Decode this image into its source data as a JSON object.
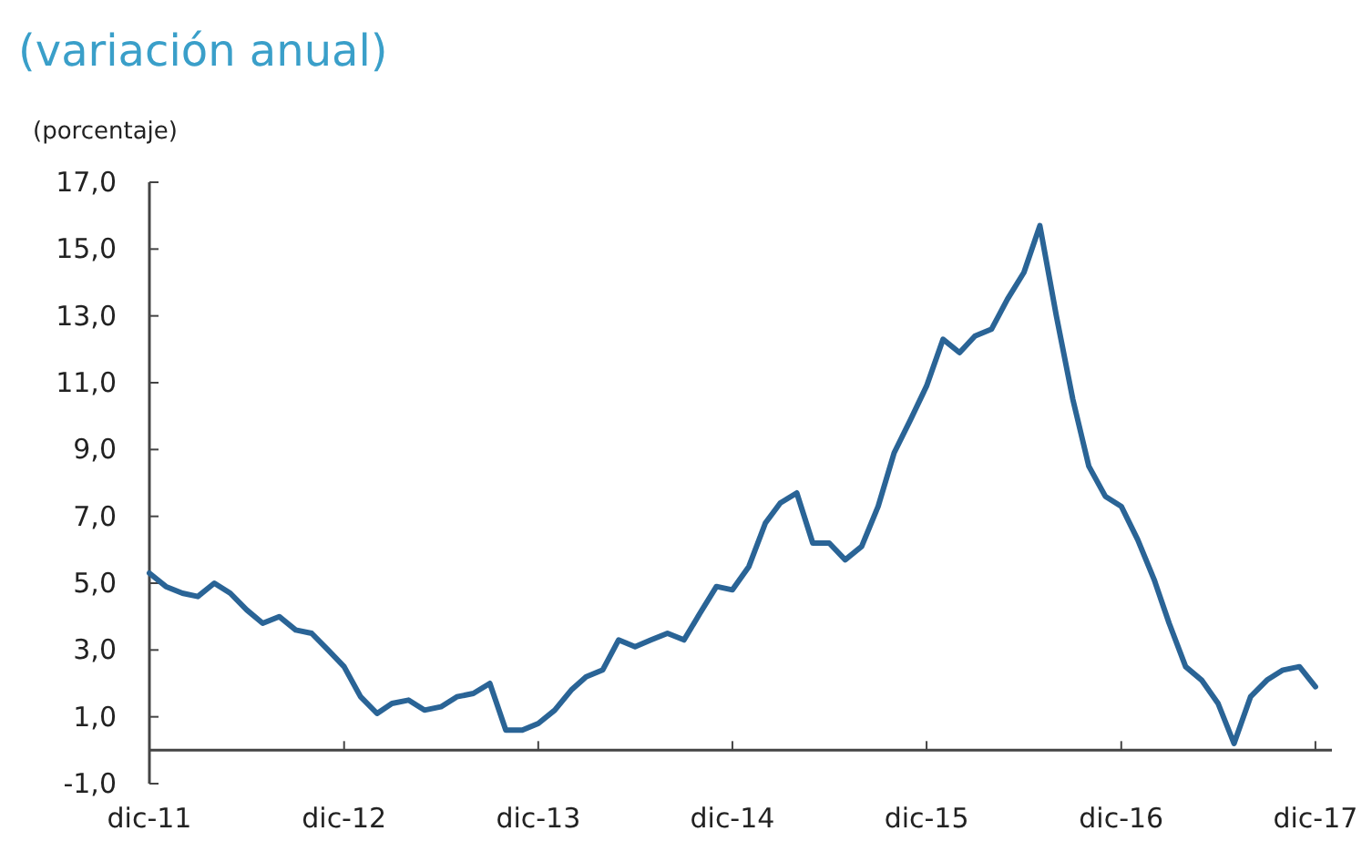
{
  "chart_data": {
    "type": "line",
    "title": "(variación anual)",
    "ylabel": "(porcentaje)",
    "x": [
      "2011-12",
      "2012-01",
      "2012-02",
      "2012-03",
      "2012-04",
      "2012-05",
      "2012-06",
      "2012-07",
      "2012-08",
      "2012-09",
      "2012-10",
      "2012-11",
      "2012-12",
      "2013-01",
      "2013-02",
      "2013-03",
      "2013-04",
      "2013-05",
      "2013-06",
      "2013-07",
      "2013-08",
      "2013-09",
      "2013-10",
      "2013-11",
      "2013-12",
      "2014-01",
      "2014-02",
      "2014-03",
      "2014-04",
      "2014-05",
      "2014-06",
      "2014-07",
      "2014-08",
      "2014-09",
      "2014-10",
      "2014-11",
      "2014-12",
      "2015-01",
      "2015-02",
      "2015-03",
      "2015-04",
      "2015-05",
      "2015-06",
      "2015-07",
      "2015-08",
      "2015-09",
      "2015-10",
      "2015-11",
      "2015-12",
      "2016-01",
      "2016-02",
      "2016-03",
      "2016-04",
      "2016-05",
      "2016-06",
      "2016-07",
      "2016-08",
      "2016-09",
      "2016-10",
      "2016-11",
      "2016-12",
      "2017-01",
      "2017-02",
      "2017-03",
      "2017-04",
      "2017-05",
      "2017-06",
      "2017-07",
      "2017-08",
      "2017-09",
      "2017-10",
      "2017-11",
      "2017-12"
    ],
    "series": [
      {
        "color": "#2a6496",
        "values": [
          5.3,
          4.9,
          4.7,
          4.6,
          5.0,
          4.7,
          4.2,
          3.8,
          4.0,
          3.6,
          3.5,
          3.0,
          2.5,
          1.6,
          1.1,
          1.4,
          1.5,
          1.2,
          1.3,
          1.6,
          1.7,
          2.0,
          0.6,
          0.6,
          0.8,
          1.2,
          1.8,
          2.2,
          2.4,
          3.3,
          3.1,
          3.3,
          3.5,
          3.3,
          4.1,
          4.9,
          4.8,
          5.5,
          6.8,
          7.4,
          7.7,
          6.2,
          6.2,
          5.7,
          6.1,
          7.3,
          8.9,
          9.9,
          10.9,
          12.3,
          11.9,
          12.4,
          12.6,
          13.5,
          14.3,
          15.7,
          13.0,
          10.5,
          8.5,
          7.6,
          7.3,
          6.3,
          5.1,
          3.8,
          2.5,
          2.1,
          1.4,
          0.2,
          1.6,
          2.1,
          2.4,
          2.5,
          1.9
        ]
      }
    ],
    "xlim": [
      "2011-12",
      "2018-01"
    ],
    "xticks": [
      {
        "value": "2011-12",
        "label": "dic-11"
      },
      {
        "value": "2012-12",
        "label": "dic-12"
      },
      {
        "value": "2013-12",
        "label": "dic-13"
      },
      {
        "value": "2014-12",
        "label": "dic-14"
      },
      {
        "value": "2015-12",
        "label": "dic-15"
      },
      {
        "value": "2016-12",
        "label": "dic-16"
      },
      {
        "value": "2017-12",
        "label": "dic-17"
      }
    ],
    "ylim": [
      -1,
      17
    ],
    "yticks": [
      {
        "value": -1,
        "label": "-1,0"
      },
      {
        "value": 1,
        "label": "1,0"
      },
      {
        "value": 3,
        "label": "3,0"
      },
      {
        "value": 5,
        "label": "5,0"
      },
      {
        "value": 7,
        "label": "7,0"
      },
      {
        "value": 9,
        "label": "9,0"
      },
      {
        "value": 11,
        "label": "11,0"
      },
      {
        "value": 13,
        "label": "13,0"
      },
      {
        "value": 15,
        "label": "15,0"
      },
      {
        "value": 17,
        "label": "17,0"
      }
    ],
    "grid": false,
    "legend": false,
    "marker": "none",
    "line_style": "solid"
  }
}
